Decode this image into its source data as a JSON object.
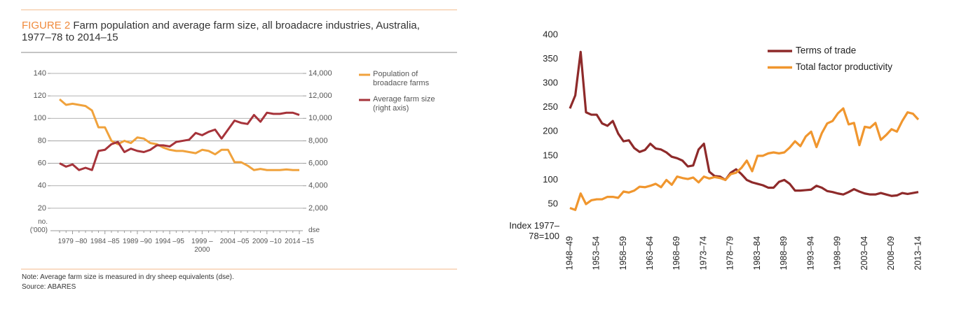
{
  "chart_data": [
    {
      "type": "line",
      "figure_label": "FIGURE 2",
      "title": "Farm population and average farm size, all broadacre industries, Australia, 1977–78 to 2014–15",
      "note": "Note: Average farm size is measured in dry sheep equivalents (dse).",
      "source": "Source: ABARES",
      "ylabel": "no. ('000)",
      "y2label": "dse",
      "categories": [
        null,
        null,
        "1979 –80",
        null,
        null,
        null,
        null,
        "1984 –85",
        null,
        null,
        null,
        null,
        "1989 –90",
        null,
        null,
        null,
        null,
        "1994 –95",
        null,
        null,
        null,
        null,
        "1999 –2000",
        null,
        null,
        null,
        null,
        "2004 –05",
        null,
        null,
        null,
        null,
        "2009 –10",
        null,
        null,
        null,
        null,
        "2014 –15"
      ],
      "series": [
        {
          "name": "Population of broadacre farms",
          "color": "#f0a23c",
          "values": [
            117,
            112,
            113,
            112,
            111,
            107,
            92,
            92,
            80,
            77,
            80,
            78,
            83,
            82,
            78,
            77,
            74,
            72,
            71,
            71,
            70,
            69,
            72,
            71,
            68,
            72,
            72,
            61,
            61,
            58,
            54,
            55,
            54,
            54,
            54,
            54.5,
            54,
            54
          ]
        },
        {
          "name": "Average farm size (right axis)",
          "color": "#a6333a",
          "axis": "y2",
          "values": [
            6000,
            5700,
            5900,
            5400,
            5600,
            5400,
            7100,
            7200,
            7700,
            7900,
            7000,
            7300,
            7100,
            7000,
            7200,
            7600,
            7600,
            7500,
            7900,
            8000,
            8100,
            8700,
            8500,
            8800,
            9000,
            8200,
            9000,
            9800,
            9600,
            9500,
            10300,
            9700,
            10500,
            10400,
            10400,
            10500,
            10500,
            10300
          ]
        }
      ],
      "ylim": [
        0,
        140
      ],
      "yticks": [
        20,
        40,
        60,
        80,
        100,
        120,
        140
      ],
      "y2lim": [
        0,
        14000
      ],
      "y2ticks": [
        {
          "value": 2000,
          "label": "2,000"
        },
        {
          "value": 4000,
          "label": "4,000"
        },
        {
          "value": 6000,
          "label": "6,000"
        },
        {
          "value": 8000,
          "label": "8,000"
        },
        {
          "value": 10000,
          "label": "10,000"
        },
        {
          "value": 12000,
          "label": "12,000"
        },
        {
          "value": 14000,
          "label": "14,000"
        }
      ],
      "grid": true,
      "legend": "right"
    },
    {
      "type": "line",
      "ylabel": "Index 1977–78=100",
      "categories": [
        "1948–49",
        null,
        null,
        null,
        null,
        "1953–54",
        null,
        null,
        null,
        null,
        "1958–59",
        null,
        null,
        null,
        null,
        "1963–64",
        null,
        null,
        null,
        null,
        "1968–69",
        null,
        null,
        null,
        null,
        "1973–74",
        null,
        null,
        null,
        null,
        "1978–79",
        null,
        null,
        null,
        null,
        "1983–84",
        null,
        null,
        null,
        null,
        "1988–89",
        null,
        null,
        null,
        null,
        "1993–94",
        null,
        null,
        null,
        null,
        "1998–99",
        null,
        null,
        null,
        null,
        "2003–04",
        null,
        null,
        null,
        null,
        "2008–09",
        null,
        null,
        null,
        null,
        "2013–14"
      ],
      "series": [
        {
          "name": "Terms of trade",
          "color": "#8e2a2a",
          "values": [
            248,
            275,
            365,
            240,
            235,
            235,
            217,
            212,
            222,
            196,
            180,
            182,
            166,
            158,
            162,
            175,
            165,
            163,
            157,
            148,
            145,
            140,
            128,
            130,
            163,
            175,
            117,
            108,
            107,
            100,
            115,
            122,
            112,
            100,
            95,
            92,
            89,
            84,
            84,
            96,
            100,
            92,
            78,
            78,
            79,
            80,
            88,
            84,
            77,
            75,
            72,
            70,
            75,
            81,
            76,
            72,
            70,
            70,
            73,
            70,
            67,
            68,
            73,
            71,
            73,
            75
          ]
        },
        {
          "name": "Total factor productivity",
          "color": "#f0962e",
          "values": [
            42,
            38,
            72,
            50,
            58,
            60,
            60,
            65,
            65,
            63,
            76,
            74,
            78,
            86,
            85,
            88,
            92,
            85,
            100,
            90,
            107,
            104,
            102,
            105,
            95,
            107,
            103,
            106,
            104,
            100,
            112,
            115,
            125,
            140,
            118,
            150,
            150,
            155,
            157,
            155,
            157,
            167,
            180,
            170,
            190,
            200,
            168,
            197,
            217,
            222,
            238,
            248,
            215,
            218,
            172,
            210,
            208,
            218,
            183,
            193,
            205,
            200,
            222,
            240,
            237,
            225
          ]
        }
      ],
      "ylim": [
        30,
        400
      ],
      "yticks": [
        50,
        100,
        150,
        200,
        250,
        300,
        350,
        400
      ],
      "grid": false,
      "legend": "upper center"
    }
  ]
}
